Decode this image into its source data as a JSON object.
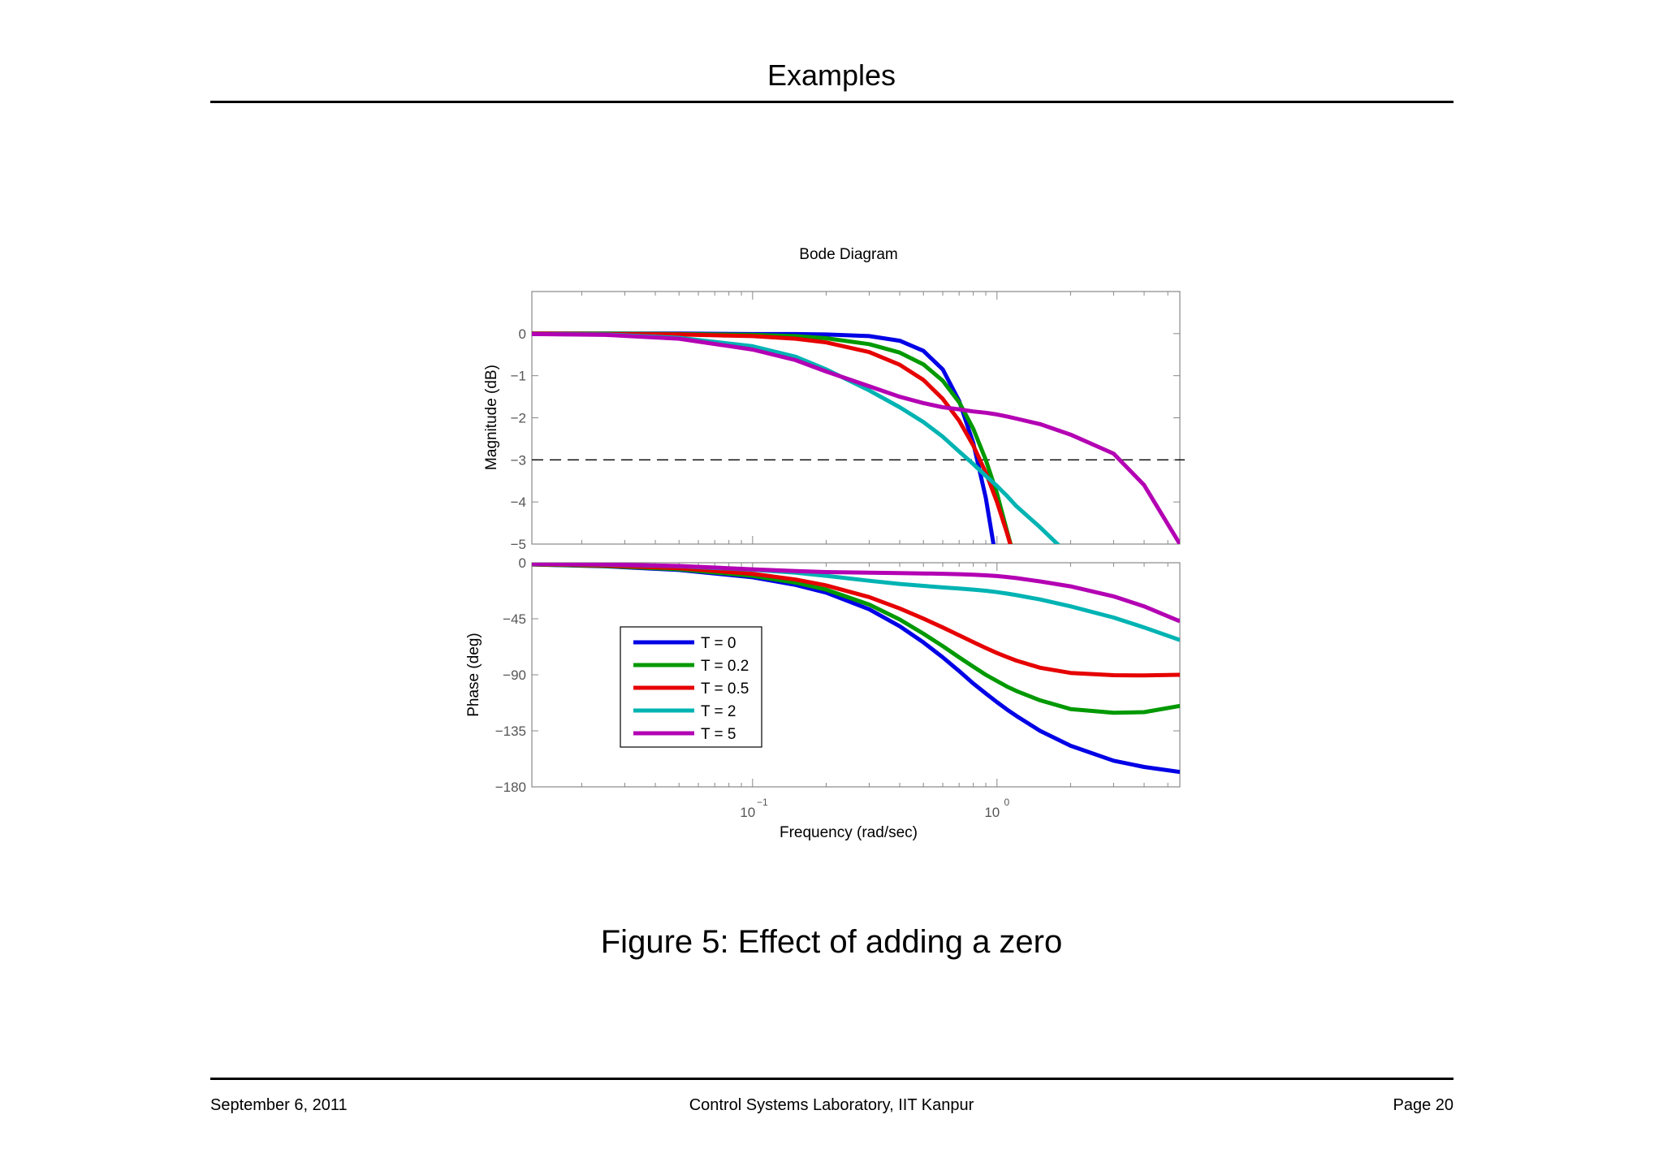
{
  "page": {
    "title": "Examples",
    "caption": "Figure 5: Effect of adding a zero",
    "footer": {
      "date": "September 6, 2011",
      "center": "Control Systems Laboratory, IIT Kanpur",
      "page": "Page 20"
    }
  },
  "chart_data": {
    "type": "line",
    "title": "Bode Diagram",
    "xlabel": "Frequency  (rad/sec)",
    "xscale": "log",
    "xlim": [
      0.0125,
      5.6
    ],
    "x_ticks": [
      {
        "base": "10",
        "exp": "−1",
        "value": 0.1
      },
      {
        "base": "10",
        "exp": "0",
        "value": 1
      }
    ],
    "legend_position": "inside-lower-left of phase plot",
    "grid": false,
    "panels": [
      {
        "name": "magnitude",
        "ylabel": "Magnitude (dB)",
        "ylim": [
          -5,
          1
        ],
        "yticks": [
          0,
          -1,
          -2,
          -3,
          -4,
          -5
        ],
        "ytick_labels": [
          "0",
          "−1",
          "−2",
          "−3",
          "−4",
          "−5"
        ],
        "reference_line": {
          "y": -3,
          "style": "dashed"
        }
      },
      {
        "name": "phase",
        "ylabel": "Phase (deg)",
        "ylim": [
          -180,
          0
        ],
        "yticks": [
          0,
          -45,
          -90,
          -135,
          -180
        ],
        "ytick_labels": [
          "0",
          "−45",
          "−90",
          "−135",
          "−180"
        ]
      }
    ],
    "x": [
      0.0125,
      0.025,
      0.05,
      0.1,
      0.15,
      0.2,
      0.3,
      0.4,
      0.5,
      0.6,
      0.7,
      0.8,
      0.9,
      1.0,
      1.1,
      1.2,
      1.5,
      2.0,
      3.0,
      4.0,
      5.6
    ],
    "series": [
      {
        "name": "T = 0",
        "color": "#0000e6",
        "magnitude": [
          0,
          0,
          0,
          -0.01,
          -0.01,
          -0.02,
          -0.06,
          -0.17,
          -0.41,
          -0.85,
          -1.6,
          -2.6,
          -3.9,
          -5.5,
          null,
          null,
          null,
          null,
          null,
          null,
          null
        ],
        "phase": [
          -1.4,
          -2.9,
          -5.8,
          -11.7,
          -17.8,
          -24.0,
          -37.4,
          -51.0,
          -64.0,
          -76.0,
          -87.0,
          -97.0,
          -105.0,
          -112.0,
          -118.0,
          -123.0,
          -135.0,
          -147.0,
          -159.0,
          -164.0,
          -168.0
        ]
      },
      {
        "name": "T = 0.2",
        "color": "#009900",
        "magnitude": [
          0,
          0,
          -0.01,
          -0.03,
          -0.06,
          -0.11,
          -0.25,
          -0.45,
          -0.73,
          -1.12,
          -1.63,
          -2.26,
          -3.0,
          -3.8,
          -4.7,
          -5.5,
          null,
          null,
          null,
          null,
          null
        ],
        "phase": [
          -1.3,
          -2.6,
          -5.2,
          -10.5,
          -16.0,
          -21.6,
          -33.6,
          -45.6,
          -57.0,
          -67.0,
          -76.0,
          -83.5,
          -90.0,
          -95.0,
          -99.5,
          -103.0,
          -110.5,
          -117.5,
          -120.5,
          -120.0,
          -115.0
        ]
      },
      {
        "name": "T = 0.5",
        "color": "#e60000",
        "magnitude": [
          0,
          -0.01,
          -0.02,
          -0.06,
          -0.12,
          -0.21,
          -0.44,
          -0.74,
          -1.1,
          -1.55,
          -2.07,
          -2.66,
          -3.3,
          -4.0,
          -4.75,
          -5.5,
          null,
          null,
          null,
          null,
          null
        ],
        "phase": [
          -1.1,
          -2.2,
          -4.4,
          -8.9,
          -13.5,
          -18.2,
          -27.6,
          -36.7,
          -44.9,
          -52.0,
          -58.3,
          -63.8,
          -68.5,
          -72.5,
          -75.8,
          -78.6,
          -84.3,
          -88.5,
          -90.3,
          -90.5,
          -90.0
        ]
      },
      {
        "name": "T = 2",
        "color": "#00b3b3",
        "magnitude": [
          -0.01,
          -0.02,
          -0.1,
          -0.3,
          -0.55,
          -0.85,
          -1.35,
          -1.75,
          -2.1,
          -2.45,
          -2.8,
          -3.1,
          -3.38,
          -3.62,
          -3.86,
          -4.1,
          -4.6,
          -5.3,
          null,
          null,
          null
        ],
        "phase": [
          -0.9,
          -1.5,
          -2.8,
          -5.6,
          -8.0,
          -10.5,
          -14.5,
          -17.0,
          -18.6,
          -19.8,
          -20.7,
          -21.6,
          -22.5,
          -23.6,
          -24.8,
          -26.0,
          -29.5,
          -35.0,
          -44.0,
          -52.0,
          -62.0
        ]
      },
      {
        "name": "T = 5",
        "color": "#b300b3",
        "magnitude": [
          -0.01,
          -0.03,
          -0.12,
          -0.38,
          -0.63,
          -0.9,
          -1.25,
          -1.5,
          -1.65,
          -1.75,
          -1.8,
          -1.85,
          -1.88,
          -1.92,
          -1.97,
          -2.02,
          -2.15,
          -2.4,
          -2.85,
          -3.6,
          -5.0
        ],
        "phase": [
          -0.8,
          -1.3,
          -2.6,
          -5.3,
          -6.7,
          -7.5,
          -8.0,
          -8.3,
          -8.6,
          -8.9,
          -9.2,
          -9.6,
          -10.1,
          -10.7,
          -11.5,
          -12.3,
          -15.0,
          -19.0,
          -27.0,
          -35.0,
          -47.0
        ]
      }
    ]
  }
}
